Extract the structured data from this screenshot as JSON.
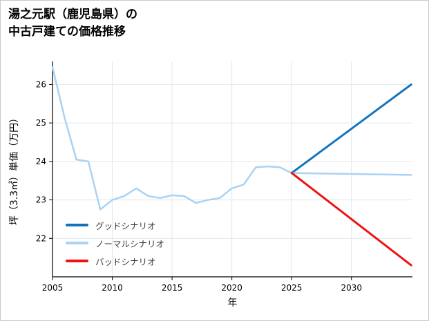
{
  "title": {
    "line1": "湯之元駅（鹿児島県）の",
    "line2": "中古戸建ての価格推移"
  },
  "chart_data": {
    "type": "line",
    "title": "湯之元駅（鹿児島県）の中古戸建ての価格推移",
    "xlabel": "年",
    "ylabel": "坪（3.3㎡）単価（万円）",
    "xlim": [
      2005,
      2035.1
    ],
    "ylim": [
      21.0,
      26.6
    ],
    "xticks": [
      2005,
      2010,
      2015,
      2020,
      2025,
      2030
    ],
    "yticks": [
      22,
      23,
      24,
      25,
      26
    ],
    "grid": true,
    "grid_color": "#e1e7ec",
    "axis_color": "#000000",
    "legend_position": "lower left",
    "series": [
      {
        "id": "actual",
        "label": null,
        "color": "#a9d2f3",
        "width": 2.5,
        "x": [
          2005,
          2006,
          2007,
          2008,
          2009,
          2010,
          2011,
          2012,
          2013,
          2014,
          2015,
          2016,
          2017,
          2018,
          2019,
          2020,
          2021,
          2022,
          2023,
          2024,
          2025
        ],
        "y": [
          26.45,
          25.15,
          24.05,
          24.0,
          22.75,
          23.0,
          23.1,
          23.3,
          23.1,
          23.05,
          23.12,
          23.1,
          22.92,
          23.0,
          23.05,
          23.3,
          23.4,
          23.85,
          23.87,
          23.85,
          23.7
        ]
      },
      {
        "id": "good",
        "label": "グッドシナリオ",
        "color": "#1273bd",
        "width": 3,
        "x": [
          2025,
          2035
        ],
        "y": [
          23.7,
          26.0
        ]
      },
      {
        "id": "normal",
        "label": "ノーマルシナリオ",
        "color": "#a9d2f3",
        "width": 2.5,
        "x": [
          2025,
          2035
        ],
        "y": [
          23.7,
          23.65
        ]
      },
      {
        "id": "bad",
        "label": "バッドシナリオ",
        "color": "#ee1111",
        "width": 3,
        "x": [
          2025,
          2035
        ],
        "y": [
          23.7,
          21.3
        ]
      }
    ]
  }
}
